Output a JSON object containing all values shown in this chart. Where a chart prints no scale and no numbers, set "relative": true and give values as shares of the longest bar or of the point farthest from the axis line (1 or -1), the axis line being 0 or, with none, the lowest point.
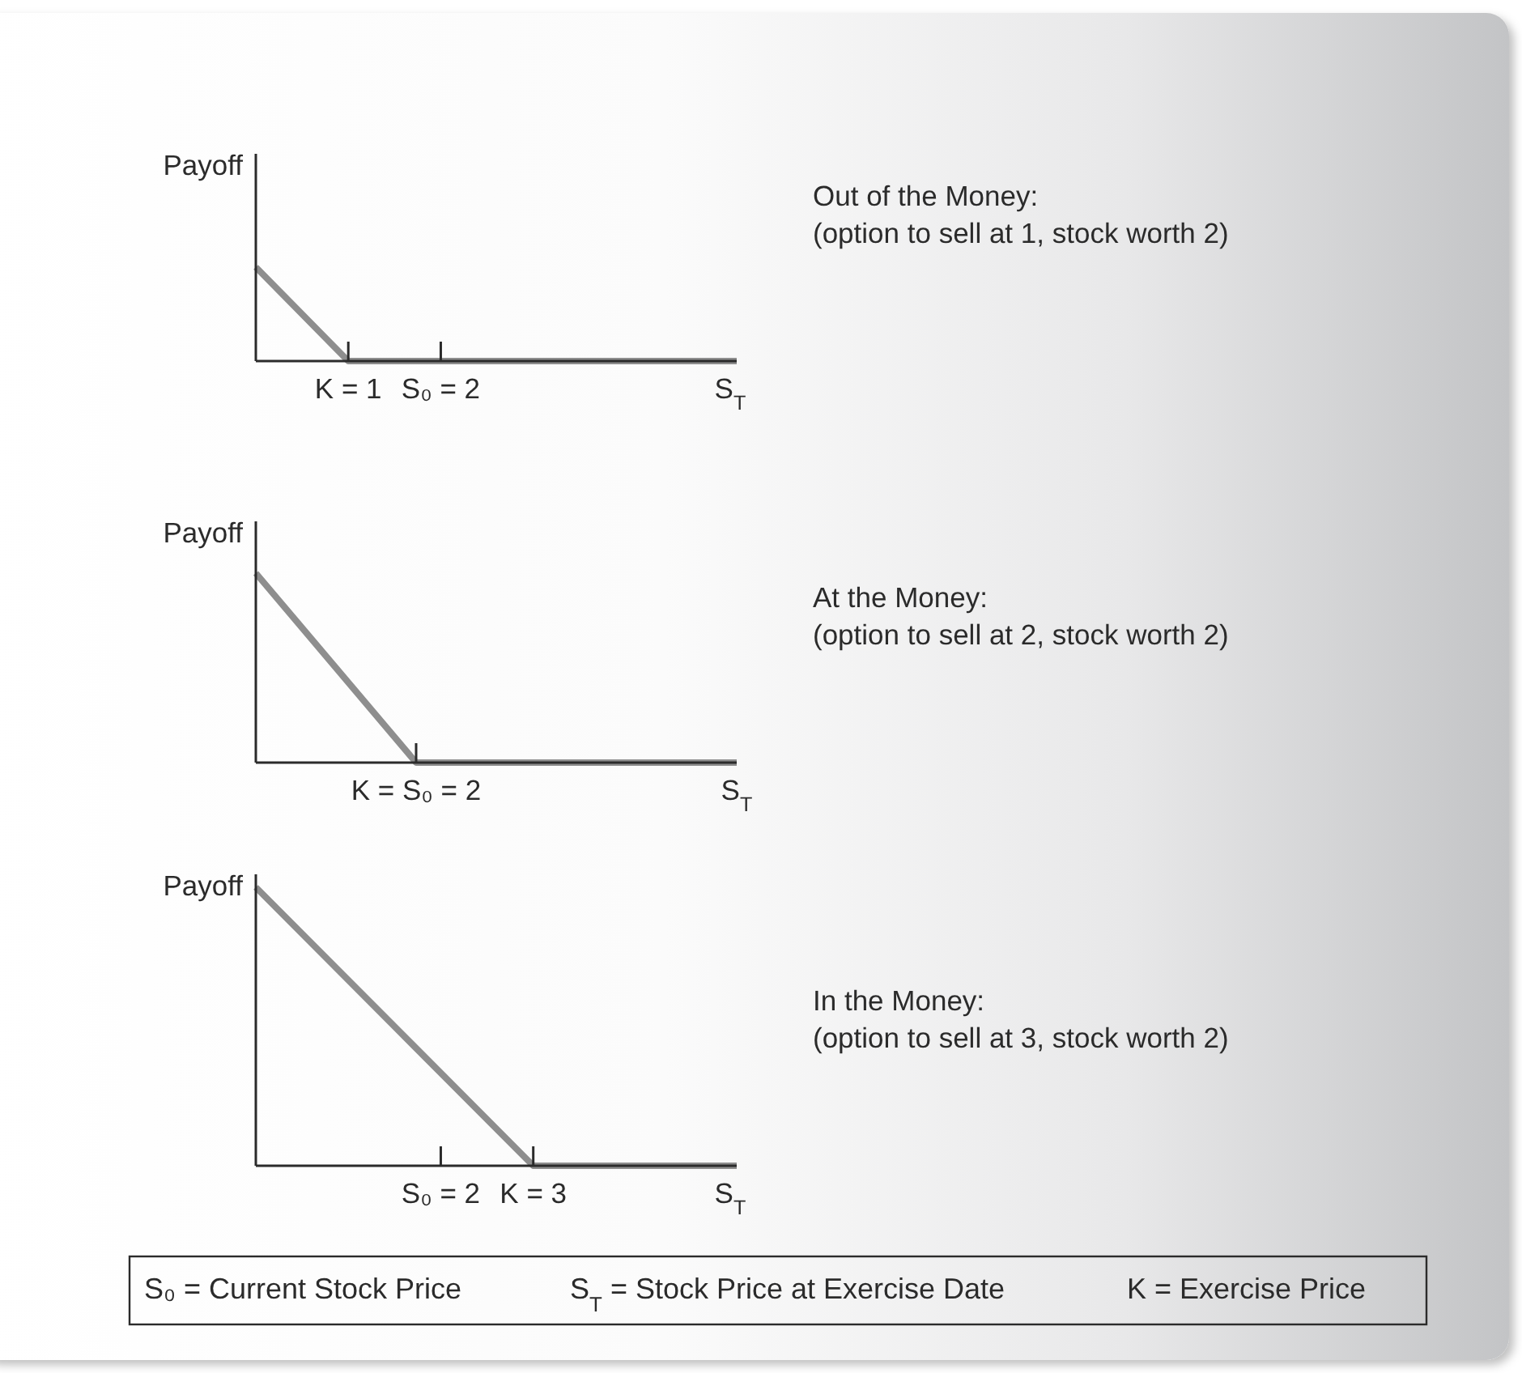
{
  "chart_data": [
    {
      "type": "line",
      "annotations": [
        "Out of the Money:",
        "(option to sell at 1, stock worth 2)"
      ],
      "xlabel": "S$_{T}$",
      "ylabel": "Payoff",
      "relative": true,
      "x": [
        0,
        1,
        5.2
      ],
      "xlim": [
        0,
        5.2
      ],
      "xticks": [
        {
          "value": 1,
          "label": "K = 1"
        },
        {
          "value": 2,
          "label": "S₀ = 2"
        }
      ],
      "series": [
        {
          "color": "#8e8e8e",
          "values": [
            1,
            0,
            0
          ]
        }
      ]
    },
    {
      "type": "line",
      "annotations": [
        "At the Money:",
        "(option to sell at 2, stock worth 2)"
      ],
      "ylabel": "Payoff",
      "relative": true,
      "categories": [
        null,
        "K = S₀ = 2",
        null,
        "S$_{T}$"
      ],
      "series": [
        {
          "color": "#8e8e8e",
          "values": [
            1,
            0,
            0,
            0
          ]
        }
      ]
    },
    {
      "type": "line",
      "annotations": [
        "In the Money:",
        "(option to sell at 3, stock worth 2)"
      ],
      "xlabel": "S$_{T}$",
      "ylabel": "Payoff",
      "relative": true,
      "x": [
        0,
        3,
        5.2
      ],
      "xlim": [
        0,
        5.2
      ],
      "xticks": [
        {
          "value": 2,
          "label": "S₀ = 2"
        },
        {
          "value": 3,
          "label": "K = 3"
        }
      ],
      "series": [
        {
          "color": "#8e8e8e",
          "values": [
            1,
            0,
            0
          ]
        }
      ]
    },
    {
      "type": "other",
      "annotations": [
        "S₀ = Current Stock Price",
        "S$_{T}$ = Stock Price at Exercise Date",
        "K = Exercise Price"
      ]
    }
  ]
}
